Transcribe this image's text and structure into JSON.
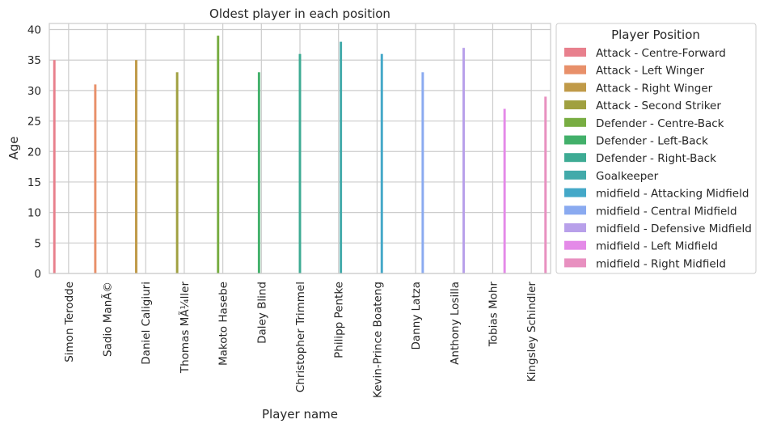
{
  "chart_data": {
    "type": "bar",
    "title": "Oldest player in each position",
    "xlabel": "Player name",
    "ylabel": "Age",
    "ylim": [
      0,
      41
    ],
    "yticks": [
      0,
      5,
      10,
      15,
      20,
      25,
      30,
      35,
      40
    ],
    "grid": true,
    "legend_title": "Player Position",
    "legend_placement": "outside-right",
    "categories": [
      "Simon Terodde",
      "Sadio ManÃ©",
      "Daniel Caligiuri",
      "Thomas MÃ¼ller",
      "Makoto Hasebe",
      "Daley Blind",
      "Christopher Trimmel",
      "Philipp Pentke",
      "Kevin-Prince Boateng",
      "Danny Latza",
      "Anthony Losilla",
      "Tobias Mohr",
      "Kingsley Schindler"
    ],
    "series": [
      {
        "name": "Attack - Centre-Forward",
        "color": "#e8808d",
        "category_index": 0,
        "value": 35
      },
      {
        "name": "Attack - Left Winger",
        "color": "#e8906a",
        "category_index": 1,
        "value": 31
      },
      {
        "name": "Attack - Right Winger",
        "color": "#c09a48",
        "category_index": 2,
        "value": 35
      },
      {
        "name": "Attack - Second Striker",
        "color": "#a0a040",
        "category_index": 3,
        "value": 33
      },
      {
        "name": "Defender - Centre-Back",
        "color": "#78ad42",
        "category_index": 4,
        "value": 39
      },
      {
        "name": "Defender - Left-Back",
        "color": "#42b06a",
        "category_index": 5,
        "value": 33
      },
      {
        "name": "Defender - Right-Back",
        "color": "#3eab94",
        "category_index": 6,
        "value": 36
      },
      {
        "name": "Goalkeeper",
        "color": "#42aaaa",
        "category_index": 7,
        "value": 38
      },
      {
        "name": "midfield - Attacking Midfield",
        "color": "#44a8c8",
        "category_index": 8,
        "value": 36
      },
      {
        "name": "midfield - Central Midfield",
        "color": "#8aaaf0",
        "category_index": 9,
        "value": 33
      },
      {
        "name": "midfield - Defensive Midfield",
        "color": "#b8a0ea",
        "category_index": 10,
        "value": 37
      },
      {
        "name": "midfield - Left Midfield",
        "color": "#e48ae8",
        "category_index": 11,
        "value": 27
      },
      {
        "name": "midfield - Right Midfield",
        "color": "#e890c0",
        "category_index": 12,
        "value": 29
      }
    ]
  }
}
